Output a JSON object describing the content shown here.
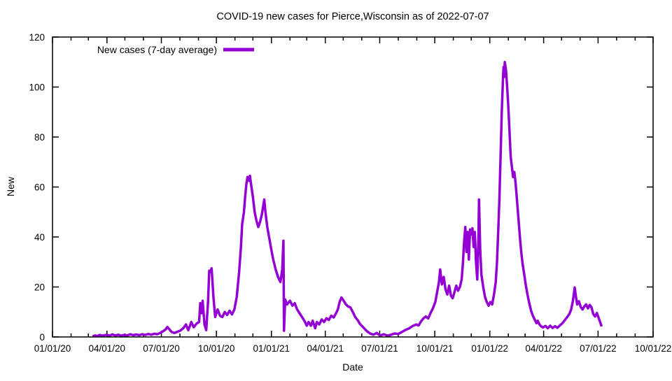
{
  "chart_data": {
    "type": "line",
    "title": "COVID-19 new cases for Pierce,Wisconsin as of 2022-07-07",
    "xlabel": "Date",
    "ylabel": "New",
    "ylim": [
      0,
      120
    ],
    "xlim": [
      "2020-01-01",
      "2022-10-01"
    ],
    "grid": false,
    "background_color": "#ffffff",
    "axis_color": "#000000",
    "legend": {
      "position": "top-left-inside"
    },
    "y_ticks": [
      0,
      20,
      40,
      60,
      80,
      100,
      120
    ],
    "x_ticks": [
      {
        "date": "2020-01-01",
        "label": "01/01/20"
      },
      {
        "date": "2020-04-01",
        "label": "04/01/20"
      },
      {
        "date": "2020-07-01",
        "label": "07/01/20"
      },
      {
        "date": "2020-10-01",
        "label": "10/01/20"
      },
      {
        "date": "2021-01-01",
        "label": "01/01/21"
      },
      {
        "date": "2021-04-01",
        "label": "04/01/21"
      },
      {
        "date": "2021-07-01",
        "label": "07/01/21"
      },
      {
        "date": "2021-10-01",
        "label": "10/01/21"
      },
      {
        "date": "2022-01-01",
        "label": "01/01/22"
      },
      {
        "date": "2022-04-01",
        "label": "04/01/22"
      },
      {
        "date": "2022-07-01",
        "label": "07/01/22"
      },
      {
        "date": "2022-10-01",
        "label": "10/01/22"
      }
    ],
    "minor_x_ticks": "monthly",
    "series": [
      {
        "name": "New cases (7-day average)",
        "color": "#9400D3",
        "points": [
          [
            "2020-03-08",
            0.3
          ],
          [
            "2020-03-12",
            0.6
          ],
          [
            "2020-03-16",
            0.4
          ],
          [
            "2020-03-20",
            0.8
          ],
          [
            "2020-03-24",
            0.5
          ],
          [
            "2020-03-28",
            0.7
          ],
          [
            "2020-04-01",
            0.9
          ],
          [
            "2020-04-05",
            0.5
          ],
          [
            "2020-04-10",
            1.0
          ],
          [
            "2020-04-15",
            0.6
          ],
          [
            "2020-04-20",
            0.9
          ],
          [
            "2020-04-25",
            0.5
          ],
          [
            "2020-04-30",
            0.8
          ],
          [
            "2020-05-05",
            0.6
          ],
          [
            "2020-05-10",
            1.1
          ],
          [
            "2020-05-15",
            0.7
          ],
          [
            "2020-05-20",
            1.0
          ],
          [
            "2020-05-25",
            0.7
          ],
          [
            "2020-05-30",
            1.1
          ],
          [
            "2020-06-04",
            0.8
          ],
          [
            "2020-06-09",
            1.2
          ],
          [
            "2020-06-14",
            0.9
          ],
          [
            "2020-06-19",
            1.3
          ],
          [
            "2020-06-24",
            1.1
          ],
          [
            "2020-06-29",
            1.6
          ],
          [
            "2020-07-04",
            2.3
          ],
          [
            "2020-07-08",
            3.0
          ],
          [
            "2020-07-11",
            4.0
          ],
          [
            "2020-07-14",
            3.2
          ],
          [
            "2020-07-18",
            2.0
          ],
          [
            "2020-07-23",
            1.6
          ],
          [
            "2020-07-28",
            2.1
          ],
          [
            "2020-08-02",
            2.6
          ],
          [
            "2020-08-07",
            3.6
          ],
          [
            "2020-08-11",
            5.0
          ],
          [
            "2020-08-15",
            2.7
          ],
          [
            "2020-08-20",
            6.0
          ],
          [
            "2020-08-24",
            3.9
          ],
          [
            "2020-08-29",
            5.4
          ],
          [
            "2020-09-02",
            6.0
          ],
          [
            "2020-09-04",
            13.5
          ],
          [
            "2020-09-06",
            9.5
          ],
          [
            "2020-09-08",
            14.5
          ],
          [
            "2020-09-11",
            5.0
          ],
          [
            "2020-09-14",
            2.7
          ],
          [
            "2020-09-17",
            14.0
          ],
          [
            "2020-09-19",
            26.5
          ],
          [
            "2020-09-21",
            26.0
          ],
          [
            "2020-09-23",
            27.5
          ],
          [
            "2020-09-26",
            16.0
          ],
          [
            "2020-09-29",
            8.0
          ],
          [
            "2020-10-03",
            11.0
          ],
          [
            "2020-10-07",
            8.5
          ],
          [
            "2020-10-11",
            8.0
          ],
          [
            "2020-10-15",
            10.0
          ],
          [
            "2020-10-19",
            8.8
          ],
          [
            "2020-10-23",
            10.5
          ],
          [
            "2020-10-27",
            9.0
          ],
          [
            "2020-10-31",
            11.0
          ],
          [
            "2020-11-04",
            16
          ],
          [
            "2020-11-08",
            26
          ],
          [
            "2020-11-11",
            36
          ],
          [
            "2020-11-13",
            45
          ],
          [
            "2020-11-16",
            50
          ],
          [
            "2020-11-18",
            56
          ],
          [
            "2020-11-20",
            61
          ],
          [
            "2020-11-22",
            64
          ],
          [
            "2020-11-24",
            62.5
          ],
          [
            "2020-11-26",
            64.5
          ],
          [
            "2020-11-28",
            61
          ],
          [
            "2020-12-01",
            56
          ],
          [
            "2020-12-04",
            50
          ],
          [
            "2020-12-07",
            46.5
          ],
          [
            "2020-12-10",
            44
          ],
          [
            "2020-12-13",
            46
          ],
          [
            "2020-12-16",
            49
          ],
          [
            "2020-12-18",
            52
          ],
          [
            "2020-12-20",
            55
          ],
          [
            "2020-12-22",
            50
          ],
          [
            "2020-12-25",
            44
          ],
          [
            "2020-12-28",
            40
          ],
          [
            "2020-12-31",
            36
          ],
          [
            "2021-01-04",
            31
          ],
          [
            "2021-01-08",
            27
          ],
          [
            "2021-01-12",
            24
          ],
          [
            "2021-01-16",
            22
          ],
          [
            "2021-01-19",
            27
          ],
          [
            "2021-01-21",
            38.5
          ],
          [
            "2021-01-22",
            2.5
          ],
          [
            "2021-01-24",
            15
          ],
          [
            "2021-01-27",
            13
          ],
          [
            "2021-02-01",
            14.5
          ],
          [
            "2021-02-05",
            12.5
          ],
          [
            "2021-02-09",
            13.5
          ],
          [
            "2021-02-13",
            11
          ],
          [
            "2021-02-17",
            9.5
          ],
          [
            "2021-02-21",
            8
          ],
          [
            "2021-02-25",
            6.5
          ],
          [
            "2021-03-01",
            4.5
          ],
          [
            "2021-03-04",
            6
          ],
          [
            "2021-03-08",
            4.5
          ],
          [
            "2021-03-11",
            6.5
          ],
          [
            "2021-03-15",
            3.5
          ],
          [
            "2021-03-18",
            6
          ],
          [
            "2021-03-22",
            5
          ],
          [
            "2021-03-26",
            7
          ],
          [
            "2021-03-30",
            6
          ],
          [
            "2021-04-03",
            7.5
          ],
          [
            "2021-04-07",
            6.8
          ],
          [
            "2021-04-11",
            8.5
          ],
          [
            "2021-04-15",
            7.8
          ],
          [
            "2021-04-19",
            9.5
          ],
          [
            "2021-04-22",
            11
          ],
          [
            "2021-04-25",
            14
          ],
          [
            "2021-04-28",
            15.8
          ],
          [
            "2021-05-01",
            14.8
          ],
          [
            "2021-05-05",
            13.2
          ],
          [
            "2021-05-09",
            12.2
          ],
          [
            "2021-05-13",
            11.8
          ],
          [
            "2021-05-17",
            10
          ],
          [
            "2021-05-21",
            8
          ],
          [
            "2021-05-25",
            6.8
          ],
          [
            "2021-05-29",
            5.2
          ],
          [
            "2021-06-02",
            4.2
          ],
          [
            "2021-06-06",
            3.2
          ],
          [
            "2021-06-10",
            2.2
          ],
          [
            "2021-06-15",
            1.4
          ],
          [
            "2021-06-20",
            0.9
          ],
          [
            "2021-06-26",
            1.6
          ],
          [
            "2021-07-02",
            0.6
          ],
          [
            "2021-07-08",
            1.1
          ],
          [
            "2021-07-14",
            0.5
          ],
          [
            "2021-07-20",
            0.9
          ],
          [
            "2021-07-26",
            1.4
          ],
          [
            "2021-08-01",
            1.2
          ],
          [
            "2021-08-07",
            2.0
          ],
          [
            "2021-08-13",
            2.8
          ],
          [
            "2021-08-19",
            3.4
          ],
          [
            "2021-08-25",
            4.4
          ],
          [
            "2021-08-31",
            5.0
          ],
          [
            "2021-09-04",
            4.6
          ],
          [
            "2021-09-08",
            6.2
          ],
          [
            "2021-09-12",
            7.4
          ],
          [
            "2021-09-16",
            8.2
          ],
          [
            "2021-09-20",
            7.4
          ],
          [
            "2021-09-24",
            9.6
          ],
          [
            "2021-09-28",
            11.5
          ],
          [
            "2021-10-02",
            14
          ],
          [
            "2021-10-05",
            18
          ],
          [
            "2021-10-08",
            22
          ],
          [
            "2021-10-10",
            27
          ],
          [
            "2021-10-13",
            21
          ],
          [
            "2021-10-16",
            24
          ],
          [
            "2021-10-19",
            19
          ],
          [
            "2021-10-22",
            17
          ],
          [
            "2021-10-25",
            20.5
          ],
          [
            "2021-10-28",
            16.5
          ],
          [
            "2021-10-31",
            15.5
          ],
          [
            "2021-11-03",
            18
          ],
          [
            "2021-11-06",
            20.5
          ],
          [
            "2021-11-09",
            18.5
          ],
          [
            "2021-11-12",
            20
          ],
          [
            "2021-11-15",
            23
          ],
          [
            "2021-11-17",
            29
          ],
          [
            "2021-11-19",
            38
          ],
          [
            "2021-11-21",
            44
          ],
          [
            "2021-11-23",
            34
          ],
          [
            "2021-11-25",
            42
          ],
          [
            "2021-11-27",
            31
          ],
          [
            "2021-11-29",
            43
          ],
          [
            "2021-12-01",
            41
          ],
          [
            "2021-12-03",
            43.5
          ],
          [
            "2021-12-05",
            36
          ],
          [
            "2021-12-07",
            42
          ],
          [
            "2021-12-09",
            30
          ],
          [
            "2021-12-11",
            23
          ],
          [
            "2021-12-13",
            40
          ],
          [
            "2021-12-14",
            55
          ],
          [
            "2021-12-16",
            35
          ],
          [
            "2021-12-18",
            25
          ],
          [
            "2021-12-21",
            20
          ],
          [
            "2021-12-24",
            16
          ],
          [
            "2021-12-27",
            14
          ],
          [
            "2021-12-30",
            12.5
          ],
          [
            "2022-01-02",
            14
          ],
          [
            "2022-01-05",
            13
          ],
          [
            "2022-01-08",
            17
          ],
          [
            "2022-01-11",
            22
          ],
          [
            "2022-01-13",
            30
          ],
          [
            "2022-01-15",
            42
          ],
          [
            "2022-01-17",
            55
          ],
          [
            "2022-01-19",
            72
          ],
          [
            "2022-01-21",
            90
          ],
          [
            "2022-01-23",
            103
          ],
          [
            "2022-01-24",
            108
          ],
          [
            "2022-01-25",
            104
          ],
          [
            "2022-01-26",
            110
          ],
          [
            "2022-01-28",
            107
          ],
          [
            "2022-01-30",
            100
          ],
          [
            "2022-02-01",
            92
          ],
          [
            "2022-02-03",
            82
          ],
          [
            "2022-02-05",
            72
          ],
          [
            "2022-02-07",
            68
          ],
          [
            "2022-02-09",
            64
          ],
          [
            "2022-02-11",
            66
          ],
          [
            "2022-02-13",
            62
          ],
          [
            "2022-02-15",
            56
          ],
          [
            "2022-02-17",
            50
          ],
          [
            "2022-02-19",
            44
          ],
          [
            "2022-02-21",
            38
          ],
          [
            "2022-02-23",
            33
          ],
          [
            "2022-02-25",
            29
          ],
          [
            "2022-02-27",
            26
          ],
          [
            "2022-03-02",
            21
          ],
          [
            "2022-03-05",
            17
          ],
          [
            "2022-03-08",
            13.5
          ],
          [
            "2022-03-11",
            10.5
          ],
          [
            "2022-03-14",
            8.5
          ],
          [
            "2022-03-17",
            7
          ],
          [
            "2022-03-20",
            5.5
          ],
          [
            "2022-03-22",
            6.5
          ],
          [
            "2022-03-25",
            5
          ],
          [
            "2022-03-28",
            4.2
          ],
          [
            "2022-03-31",
            3.8
          ],
          [
            "2022-04-04",
            4.4
          ],
          [
            "2022-04-08",
            3.5
          ],
          [
            "2022-04-12",
            4.5
          ],
          [
            "2022-04-16",
            3.6
          ],
          [
            "2022-04-20",
            4.3
          ],
          [
            "2022-04-24",
            3.7
          ],
          [
            "2022-04-28",
            4.6
          ],
          [
            "2022-05-02",
            5.4
          ],
          [
            "2022-05-06",
            6.6
          ],
          [
            "2022-05-10",
            7.8
          ],
          [
            "2022-05-14",
            9.2
          ],
          [
            "2022-05-17",
            11
          ],
          [
            "2022-05-20",
            14.5
          ],
          [
            "2022-05-23",
            19.8
          ],
          [
            "2022-05-25",
            16
          ],
          [
            "2022-05-27",
            13
          ],
          [
            "2022-05-30",
            14.3
          ],
          [
            "2022-06-02",
            12
          ],
          [
            "2022-06-05",
            11
          ],
          [
            "2022-06-08",
            12.2
          ],
          [
            "2022-06-11",
            13
          ],
          [
            "2022-06-14",
            11.4
          ],
          [
            "2022-06-17",
            12.8
          ],
          [
            "2022-06-20",
            11.8
          ],
          [
            "2022-06-23",
            9.2
          ],
          [
            "2022-06-26",
            8.2
          ],
          [
            "2022-06-29",
            9.6
          ],
          [
            "2022-07-02",
            7.6
          ],
          [
            "2022-07-05",
            5.6
          ],
          [
            "2022-07-07",
            4.2
          ]
        ]
      }
    ]
  }
}
